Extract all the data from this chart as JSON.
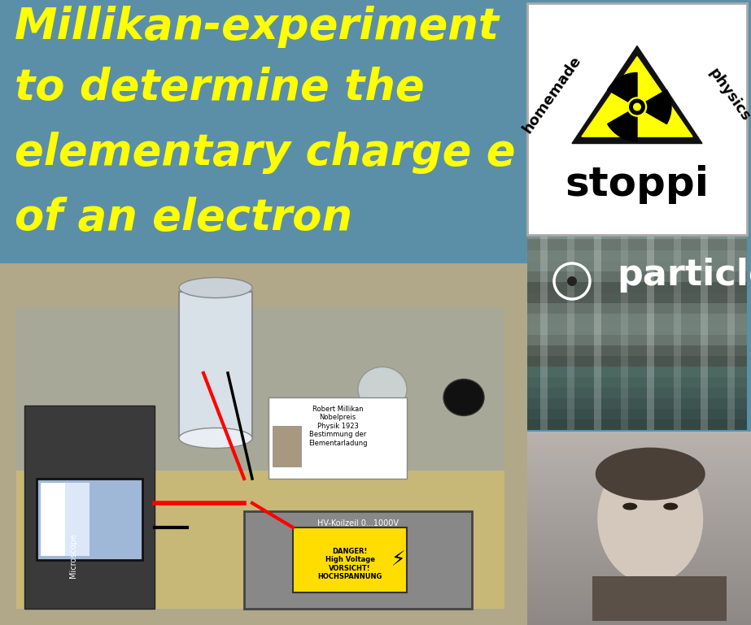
{
  "title_line1": "Millikan-experiment",
  "title_line2": "to determine the",
  "title_line3": "elementary charge e",
  "title_line4": "of an electron",
  "title_color": "#ffff00",
  "title_fontsize": 38,
  "bg_color": "#5b8fa8",
  "particle_text": "particle",
  "particle_text_color": "#ffffff",
  "particle_text_fontsize": 32,
  "stoppi_text": "stoppi",
  "stoppi_fontsize": 36,
  "homemade_text": "homemade",
  "physics_text": "physics",
  "logo_bg": "#ffffff",
  "logo_border": "#333333",
  "triangle_fill": "#ffff00",
  "triangle_border": "#111111"
}
